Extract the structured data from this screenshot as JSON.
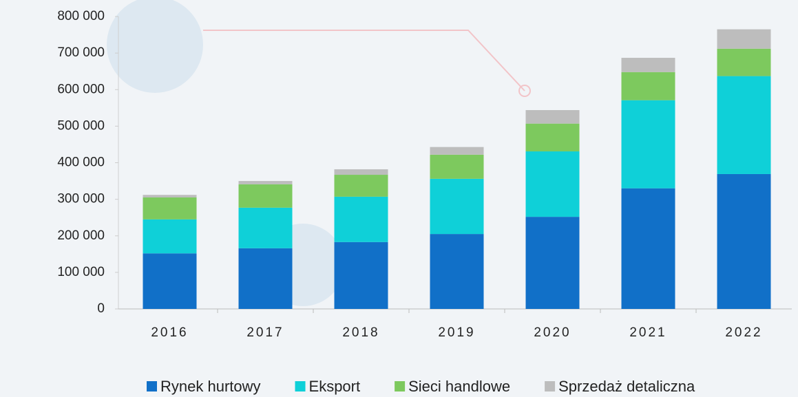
{
  "chart_data": {
    "type": "stacked_bar",
    "categories": [
      "2016",
      "2017",
      "2018",
      "2019",
      "2020",
      "2021",
      "2022"
    ],
    "series": [
      {
        "name": "Rynek hurtowy",
        "color": "#1170c8",
        "values": [
          152000,
          166000,
          183000,
          205000,
          252000,
          330000,
          369000
        ]
      },
      {
        "name": "Eksport",
        "color": "#0fd0d8",
        "values": [
          93000,
          111000,
          124000,
          151000,
          179000,
          241000,
          268000
        ]
      },
      {
        "name": "Sieci handlowe",
        "color": "#7dc95e",
        "values": [
          60000,
          64000,
          60000,
          66000,
          76000,
          77000,
          75000
        ]
      },
      {
        "name": "Sprzedaż detaliczna",
        "color": "#bdbdbd",
        "values": [
          7000,
          9000,
          15000,
          21000,
          37000,
          39000,
          53000
        ]
      }
    ],
    "ylim": [
      0,
      800000
    ],
    "yticks": [
      0,
      {
        "value": 100000,
        "label": "100 000"
      },
      {
        "value": 200000,
        "label": "200 000"
      },
      {
        "value": 300000,
        "label": "300 000"
      },
      {
        "value": 400000,
        "label": "400 000"
      },
      {
        "value": 500000,
        "label": "500 000"
      },
      {
        "value": 600000,
        "label": "600 000"
      },
      {
        "value": 700000,
        "label": "700 000"
      },
      {
        "value": 800000,
        "label": "800 000"
      }
    ],
    "legend": "bottom"
  }
}
